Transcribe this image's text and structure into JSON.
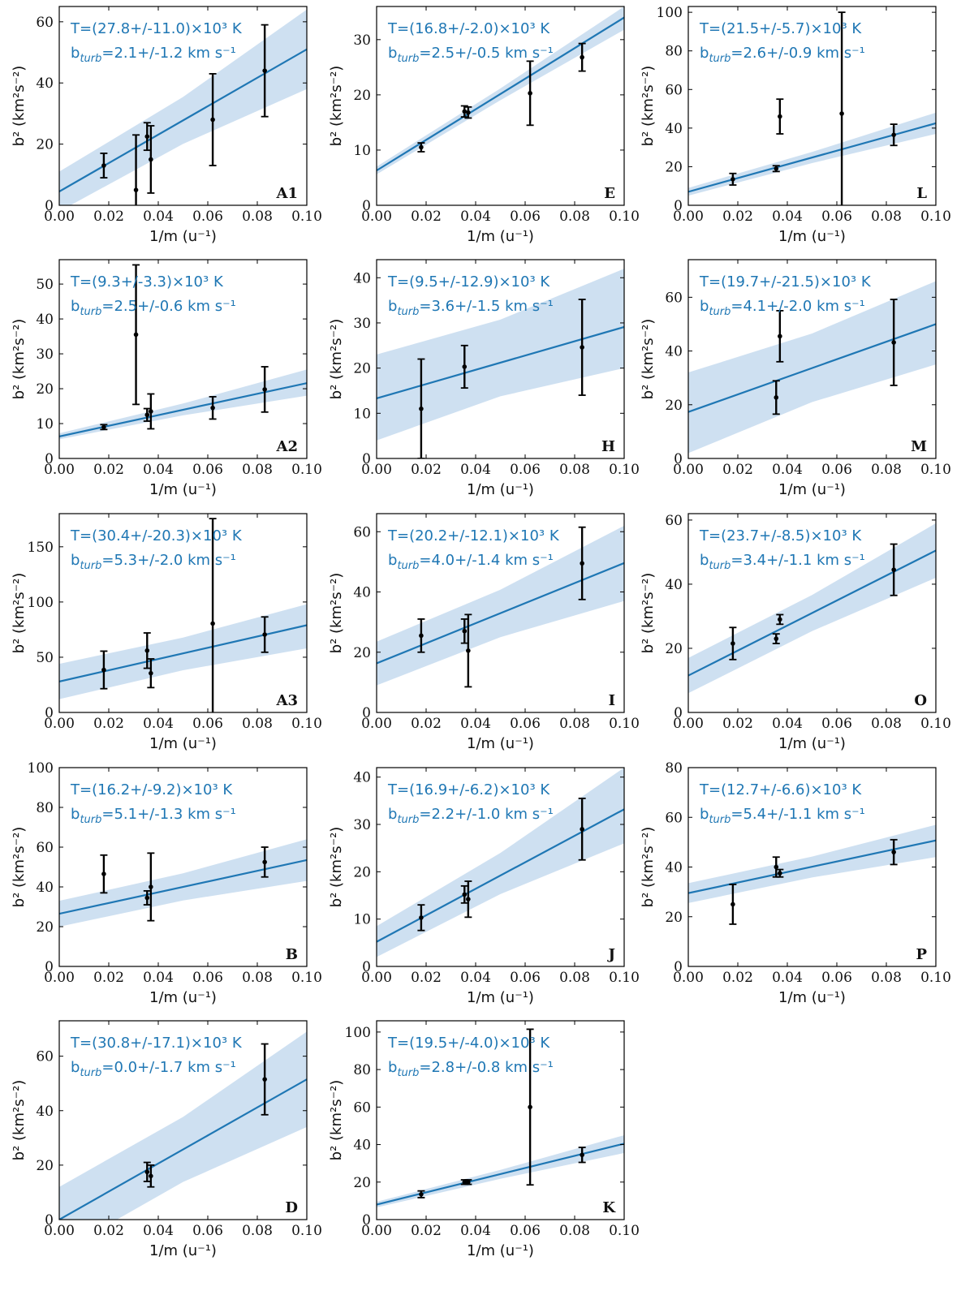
{
  "figure": {
    "xlabel": "1/m (u⁻¹)",
    "ylabel": "b² (km²s⁻²)",
    "colors": {
      "fit": "#1f77b4",
      "band": "#c6dbef",
      "points": "#000000",
      "text": "#1f77b4"
    }
  },
  "chart_data": [
    {
      "type": "scatter",
      "panel": "A1",
      "T": "T=(27.8+/-11.0)×10³ K",
      "bturb": "2.1+/-1.2",
      "xlim": [
        0,
        0.1
      ],
      "ylim": [
        0,
        65
      ],
      "yticks": [
        0,
        20,
        40,
        60
      ],
      "fit": {
        "intercept": 4.5,
        "slope": 465,
        "band_intercept": [
          -2,
          11
        ],
        "band_end": [
          38,
          64
        ]
      },
      "points": [
        {
          "x": 0.018,
          "y": 13,
          "err": 4
        },
        {
          "x": 0.031,
          "y": 5,
          "err": 18
        },
        {
          "x": 0.0355,
          "y": 22.5,
          "err": 4.5
        },
        {
          "x": 0.037,
          "y": 15,
          "err": 11
        },
        {
          "x": 0.062,
          "y": 28,
          "err": 15
        },
        {
          "x": 0.083,
          "y": 44,
          "err": 15
        }
      ]
    },
    {
      "type": "scatter",
      "panel": "E",
      "T": "T=(16.8+/-2.0)×10³ K",
      "bturb": "2.5+/-0.5",
      "xlim": [
        0,
        0.1
      ],
      "ylim": [
        0,
        36
      ],
      "yticks": [
        0,
        10,
        20,
        30
      ],
      "fit": {
        "intercept": 6.3,
        "slope": 277,
        "band_intercept": [
          5.6,
          7
        ],
        "band_end": [
          31.8,
          36
        ]
      },
      "points": [
        {
          "x": 0.018,
          "y": 10.5,
          "err": 0.8
        },
        {
          "x": 0.0355,
          "y": 17,
          "err": 1
        },
        {
          "x": 0.037,
          "y": 16.8,
          "err": 1
        },
        {
          "x": 0.062,
          "y": 20.3,
          "err": 5.8
        },
        {
          "x": 0.083,
          "y": 26.8,
          "err": 2.5
        }
      ]
    },
    {
      "type": "scatter",
      "panel": "L",
      "T": "T=(21.5+/-5.7)×10³ K",
      "bturb": "2.6+/-0.9",
      "xlim": [
        0,
        0.1
      ],
      "ylim": [
        0,
        103
      ],
      "yticks": [
        0,
        20,
        40,
        60,
        80,
        100
      ],
      "fit": {
        "intercept": 7,
        "slope": 355,
        "band_intercept": [
          5,
          9
        ],
        "band_end": [
          37,
          48
        ]
      },
      "points": [
        {
          "x": 0.018,
          "y": 13.5,
          "err": 3
        },
        {
          "x": 0.0355,
          "y": 19,
          "err": 1.5
        },
        {
          "x": 0.037,
          "y": 46,
          "err": 9
        },
        {
          "x": 0.062,
          "y": 47.5,
          "err": 52.5
        },
        {
          "x": 0.083,
          "y": 36.5,
          "err": 5.5
        }
      ]
    },
    {
      "type": "scatter",
      "panel": "A2",
      "T": "T=(9.3+/-3.3)×10³ K",
      "bturb": "2.5+/-0.6",
      "xlim": [
        0,
        0.1
      ],
      "ylim": [
        0,
        57
      ],
      "yticks": [
        0,
        10,
        20,
        30,
        40,
        50
      ],
      "fit": {
        "intercept": 6.3,
        "slope": 153,
        "band_intercept": [
          5.5,
          7.2
        ],
        "band_end": [
          18,
          25.5
        ]
      },
      "points": [
        {
          "x": 0.018,
          "y": 9,
          "err": 0.7
        },
        {
          "x": 0.031,
          "y": 35.5,
          "err": 20
        },
        {
          "x": 0.0355,
          "y": 12.5,
          "err": 1.8
        },
        {
          "x": 0.037,
          "y": 13.5,
          "err": 5
        },
        {
          "x": 0.062,
          "y": 14.5,
          "err": 3.2
        },
        {
          "x": 0.083,
          "y": 19.8,
          "err": 6.5
        }
      ]
    },
    {
      "type": "scatter",
      "panel": "H",
      "T": "T=(9.5+/-12.9)×10³ K",
      "bturb": "3.6+/-1.5",
      "xlim": [
        0,
        0.1
      ],
      "ylim": [
        0,
        44
      ],
      "yticks": [
        0,
        10,
        20,
        30,
        40
      ],
      "fit": {
        "intercept": 13.3,
        "slope": 158,
        "band_intercept": [
          4,
          23
        ],
        "band_end": [
          20,
          42
        ]
      },
      "points": [
        {
          "x": 0.018,
          "y": 11,
          "err": 11
        },
        {
          "x": 0.0355,
          "y": 20.3,
          "err": 4.7
        },
        {
          "x": 0.083,
          "y": 24.6,
          "err": 10.6
        }
      ]
    },
    {
      "type": "scatter",
      "panel": "M",
      "T": "T=(19.7+/-21.5)×10³ K",
      "bturb": "4.1+/-2.0",
      "xlim": [
        0,
        0.1
      ],
      "ylim": [
        0,
        74
      ],
      "yticks": [
        0,
        20,
        40,
        60
      ],
      "fit": {
        "intercept": 17.3,
        "slope": 327,
        "band_intercept": [
          2,
          32
        ],
        "band_end": [
          35,
          66
        ]
      },
      "points": [
        {
          "x": 0.0355,
          "y": 22.7,
          "err": 6.2
        },
        {
          "x": 0.037,
          "y": 45.5,
          "err": 9.5
        },
        {
          "x": 0.083,
          "y": 43.2,
          "err": 16
        }
      ]
    },
    {
      "type": "scatter",
      "panel": "A3",
      "T": "T=(30.4+/-20.3)×10³ K",
      "bturb": "5.3+/-2.0",
      "xlim": [
        0,
        0.1
      ],
      "ylim": [
        0,
        180
      ],
      "yticks": [
        0,
        50,
        100,
        150
      ],
      "fit": {
        "intercept": 28,
        "slope": 510,
        "band_intercept": [
          12,
          44
        ],
        "band_end": [
          58,
          98
        ]
      },
      "points": [
        {
          "x": 0.018,
          "y": 38.5,
          "err": 17
        },
        {
          "x": 0.0355,
          "y": 56,
          "err": 16
        },
        {
          "x": 0.037,
          "y": 35.5,
          "err": 13
        },
        {
          "x": 0.062,
          "y": 80.5,
          "err": 95
        },
        {
          "x": 0.083,
          "y": 70.5,
          "err": 16
        }
      ]
    },
    {
      "type": "scatter",
      "panel": "I",
      "T": "T=(20.2+/-12.1)×10³ K",
      "bturb": "4.0+/-1.4",
      "xlim": [
        0,
        0.1
      ],
      "ylim": [
        0,
        66
      ],
      "yticks": [
        0,
        20,
        40,
        60
      ],
      "fit": {
        "intercept": 16.3,
        "slope": 333,
        "band_intercept": [
          9,
          23.5
        ],
        "band_end": [
          37,
          62
        ]
      },
      "points": [
        {
          "x": 0.018,
          "y": 25.5,
          "err": 5.5
        },
        {
          "x": 0.0355,
          "y": 27,
          "err": 4
        },
        {
          "x": 0.037,
          "y": 20.5,
          "err": 12
        },
        {
          "x": 0.083,
          "y": 49.5,
          "err": 12
        }
      ]
    },
    {
      "type": "scatter",
      "panel": "O",
      "T": "T=(23.7+/-8.5)×10³ K",
      "bturb": "3.4+/-1.1",
      "xlim": [
        0,
        0.1
      ],
      "ylim": [
        0,
        62
      ],
      "yticks": [
        0,
        20,
        40,
        60
      ],
      "fit": {
        "intercept": 11.5,
        "slope": 390,
        "band_intercept": [
          6,
          17
        ],
        "band_end": [
          42,
          59
        ]
      },
      "points": [
        {
          "x": 0.018,
          "y": 21.5,
          "err": 5
        },
        {
          "x": 0.0355,
          "y": 23,
          "err": 1.5
        },
        {
          "x": 0.037,
          "y": 29,
          "err": 1.5
        },
        {
          "x": 0.083,
          "y": 44.5,
          "err": 8
        }
      ]
    },
    {
      "type": "scatter",
      "panel": "B",
      "T": "T=(16.2+/-9.2)×10³ K",
      "bturb": "5.1+/-1.3",
      "xlim": [
        0,
        0.1
      ],
      "ylim": [
        0,
        100
      ],
      "yticks": [
        0,
        20,
        40,
        60,
        80,
        100
      ],
      "fit": {
        "intercept": 26.5,
        "slope": 270,
        "band_intercept": [
          20,
          33
        ],
        "band_end": [
          43,
          64
        ]
      },
      "points": [
        {
          "x": 0.018,
          "y": 46.5,
          "err": 9.5
        },
        {
          "x": 0.0355,
          "y": 34.5,
          "err": 3.5
        },
        {
          "x": 0.037,
          "y": 40,
          "err": 17
        },
        {
          "x": 0.083,
          "y": 52.5,
          "err": 7.5
        }
      ]
    },
    {
      "type": "scatter",
      "panel": "J",
      "T": "T=(16.9+/-6.2)×10³ K",
      "bturb": "2.2+/-1.0",
      "xlim": [
        0,
        0.1
      ],
      "ylim": [
        0,
        42
      ],
      "yticks": [
        0,
        10,
        20,
        30,
        40
      ],
      "fit": {
        "intercept": 5.2,
        "slope": 280,
        "band_intercept": [
          2,
          8.5
        ],
        "band_end": [
          26,
          42
        ]
      },
      "points": [
        {
          "x": 0.018,
          "y": 10.3,
          "err": 2.7
        },
        {
          "x": 0.0355,
          "y": 15.2,
          "err": 1.8
        },
        {
          "x": 0.037,
          "y": 14.2,
          "err": 3.8
        },
        {
          "x": 0.083,
          "y": 29,
          "err": 6.5
        }
      ]
    },
    {
      "type": "scatter",
      "panel": "P",
      "T": "T=(12.7+/-6.6)×10³ K",
      "bturb": "5.4+/-1.1",
      "xlim": [
        0,
        0.1
      ],
      "ylim": [
        0,
        80
      ],
      "yticks": [
        0,
        20,
        40,
        60,
        80
      ],
      "fit": {
        "intercept": 29.5,
        "slope": 212,
        "band_intercept": [
          25.5,
          33.5
        ],
        "band_end": [
          44,
          57
        ]
      },
      "points": [
        {
          "x": 0.018,
          "y": 25,
          "err": 8
        },
        {
          "x": 0.0355,
          "y": 40,
          "err": 4
        },
        {
          "x": 0.037,
          "y": 37.5,
          "err": 1.5
        },
        {
          "x": 0.083,
          "y": 46,
          "err": 5
        }
      ]
    },
    {
      "type": "scatter",
      "panel": "D",
      "T": "T=(30.8+/-17.1)×10³ K",
      "bturb": "0.0+/-1.7",
      "xlim": [
        0,
        0.1
      ],
      "ylim": [
        0,
        73
      ],
      "yticks": [
        0,
        20,
        40,
        60
      ],
      "fit": {
        "intercept": 0,
        "slope": 515,
        "band_intercept": [
          -12,
          12
        ],
        "band_end": [
          34,
          69
        ]
      },
      "points": [
        {
          "x": 0.0355,
          "y": 17.5,
          "err": 3.5
        },
        {
          "x": 0.037,
          "y": 16,
          "err": 4
        },
        {
          "x": 0.083,
          "y": 51.5,
          "err": 13
        }
      ]
    },
    {
      "type": "scatter",
      "panel": "K",
      "T": "T=(19.5+/-4.0)×10³ K",
      "bturb": "2.8+/-0.8",
      "xlim": [
        0,
        0.1
      ],
      "ylim": [
        0,
        106
      ],
      "yticks": [
        0,
        20,
        40,
        60,
        80,
        100
      ],
      "fit": {
        "intercept": 8,
        "slope": 325,
        "band_intercept": [
          6.5,
          9.5
        ],
        "band_end": [
          35.5,
          45
        ]
      },
      "points": [
        {
          "x": 0.018,
          "y": 13.5,
          "err": 1.8
        },
        {
          "x": 0.0355,
          "y": 20,
          "err": 1.2
        },
        {
          "x": 0.037,
          "y": 20,
          "err": 1.2
        },
        {
          "x": 0.062,
          "y": 60,
          "err": 41.5
        },
        {
          "x": 0.083,
          "y": 34.5,
          "err": 4
        }
      ]
    }
  ]
}
